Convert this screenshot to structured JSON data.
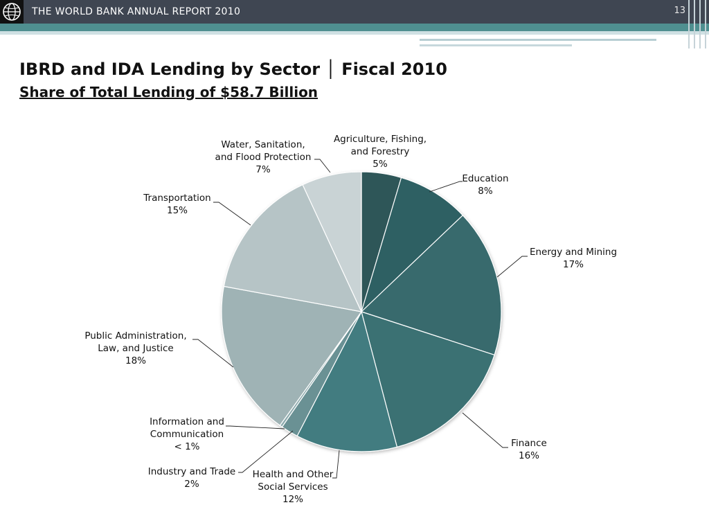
{
  "header": {
    "title": "THE WORLD BANK ANNUAL REPORT 2010",
    "page_number": "13"
  },
  "slide": {
    "title": "IBRD and IDA Lending by Sector │ Fiscal 2010",
    "subtitle": "Share of Total Lending of $58.7 Billion"
  },
  "chart_data": {
    "type": "pie",
    "start_angle_deg": 0,
    "direction": "clockwise",
    "slices": [
      {
        "name": "Agriculture, Fishing, and Forestry",
        "label_lines": [
          "Agriculture, Fishing,",
          "and Forestry"
        ],
        "value_label": "5%",
        "value": 4.6,
        "color": "#2d5659"
      },
      {
        "name": "Education",
        "label_lines": [
          "Education"
        ],
        "value_label": "8%",
        "value": 8.3,
        "color": "#2f6064"
      },
      {
        "name": "Energy and Mining",
        "label_lines": [
          "Energy and Mining"
        ],
        "value_label": "17%",
        "value": 17.1,
        "color": "#376b6d"
      },
      {
        "name": "Finance",
        "label_lines": [
          "Finance"
        ],
        "value_label": "16%",
        "value": 15.9,
        "color": "#3a7173"
      },
      {
        "name": "Health and Other Social Services",
        "label_lines": [
          "Health and Other",
          "Social Services"
        ],
        "value_label": "12%",
        "value": 11.7,
        "color": "#437b80"
      },
      {
        "name": "Industry and Trade",
        "label_lines": [
          "Industry and Trade"
        ],
        "value_label": "2%",
        "value": 2.0,
        "color": "#6b9194"
      },
      {
        "name": "Information and Communication",
        "label_lines": [
          "Information and",
          "Communication"
        ],
        "value_label": "< 1%",
        "value": 0.3,
        "color": "#8eabae"
      },
      {
        "name": "Public Administration, Law, and Justice",
        "label_lines": [
          "Public Administration,",
          "Law, and Justice"
        ],
        "value_label": "18%",
        "value": 18.0,
        "color": "#9fb3b5"
      },
      {
        "name": "Transportation",
        "label_lines": [
          "Transportation"
        ],
        "value_label": "15%",
        "value": 15.2,
        "color": "#b6c4c6"
      },
      {
        "name": "Water, Sanitation, and Flood Protection",
        "label_lines": [
          "Water, Sanitation,",
          "and Flood Protection"
        ],
        "value_label": "7%",
        "value": 6.9,
        "color": "#c9d3d5"
      }
    ]
  }
}
